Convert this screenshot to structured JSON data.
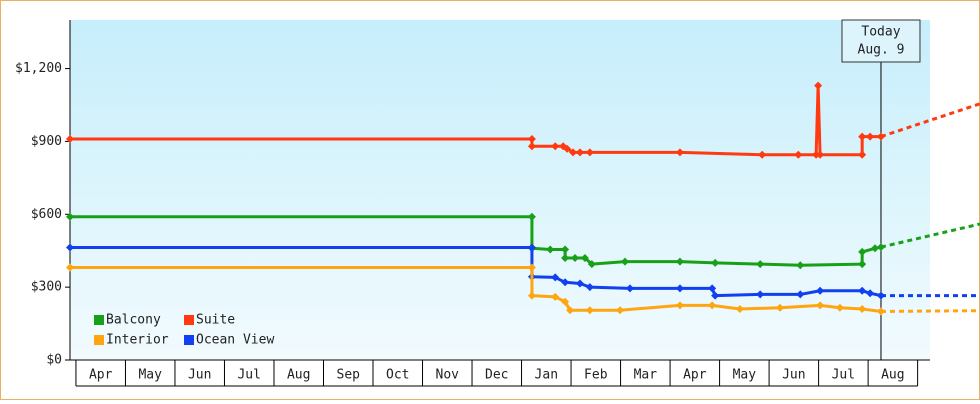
{
  "chart_data": {
    "type": "line",
    "xlim": [
      -0.12,
      17.25
    ],
    "ylim": [
      0,
      1400
    ],
    "yticks": [
      {
        "value": 0,
        "label": "$0"
      },
      {
        "value": 300,
        "label": "$300"
      },
      {
        "value": 600,
        "label": "$600"
      },
      {
        "value": 900,
        "label": "$900"
      },
      {
        "value": 1200,
        "label": "$1,200"
      }
    ],
    "xticks": [
      {
        "value": 0.5,
        "label": "Apr"
      },
      {
        "value": 1.5,
        "label": "May"
      },
      {
        "value": 2.5,
        "label": "Jun"
      },
      {
        "value": 3.5,
        "label": "Jul"
      },
      {
        "value": 4.5,
        "label": "Aug"
      },
      {
        "value": 5.5,
        "label": "Sep"
      },
      {
        "value": 6.5,
        "label": "Oct"
      },
      {
        "value": 7.5,
        "label": "Nov"
      },
      {
        "value": 8.5,
        "label": "Dec"
      },
      {
        "value": 9.5,
        "label": "Jan"
      },
      {
        "value": 10.5,
        "label": "Feb"
      },
      {
        "value": 11.5,
        "label": "Mar"
      },
      {
        "value": 12.5,
        "label": "Apr"
      },
      {
        "value": 13.5,
        "label": "May"
      },
      {
        "value": 14.5,
        "label": "Jun"
      },
      {
        "value": 15.5,
        "label": "Jul"
      },
      {
        "value": 16.5,
        "label": "Aug"
      }
    ],
    "today": {
      "x": 16.26,
      "label": "Today",
      "date": "Aug. 9"
    },
    "legend": "lower left",
    "series": [
      {
        "name": "Balcony",
        "color": "#18a018",
        "x": [
          -0.12,
          9.21,
          9.21,
          9.58,
          9.88,
          9.88,
          10.08,
          10.28,
          10.42,
          11.09,
          12.2,
          12.91,
          13.82,
          14.63,
          15.88,
          15.88,
          16.14,
          16.26,
          18.26
        ],
        "values": [
          590,
          590,
          460,
          455,
          455,
          420,
          420,
          420,
          395,
          405,
          405,
          400,
          395,
          390,
          395,
          445,
          460,
          465,
          560
        ]
      },
      {
        "name": "Suite",
        "color": "#ff3a10",
        "x": [
          -0.12,
          9.21,
          9.21,
          9.68,
          9.84,
          9.92,
          10.04,
          10.18,
          10.38,
          12.2,
          13.86,
          14.59,
          14.95,
          14.99,
          15.03,
          15.88,
          15.88,
          16.04,
          16.26,
          18.26
        ],
        "values": [
          910,
          910,
          880,
          880,
          880,
          870,
          855,
          855,
          855,
          855,
          845,
          845,
          845,
          1130,
          845,
          845,
          920,
          920,
          920,
          1055
        ]
      },
      {
        "name": "Interior",
        "color": "#ffa510",
        "x": [
          -0.12,
          9.21,
          9.21,
          9.68,
          9.88,
          9.98,
          10.38,
          10.99,
          12.2,
          12.85,
          13.41,
          14.22,
          15.03,
          15.43,
          15.88,
          16.26,
          18.26
        ],
        "values": [
          381,
          381,
          265,
          260,
          240,
          205,
          205,
          205,
          225,
          225,
          210,
          215,
          225,
          215,
          210,
          200,
          203
        ]
      },
      {
        "name": "Ocean View",
        "color": "#1040f0",
        "x": [
          -0.12,
          9.21,
          9.21,
          9.68,
          9.88,
          10.18,
          10.38,
          11.19,
          12.2,
          12.85,
          12.91,
          13.82,
          14.63,
          15.03,
          15.88,
          16.04,
          16.26,
          18.26
        ],
        "values": [
          463,
          463,
          343,
          340,
          320,
          315,
          300,
          295,
          295,
          295,
          265,
          270,
          270,
          285,
          285,
          275,
          265,
          265
        ]
      }
    ]
  }
}
